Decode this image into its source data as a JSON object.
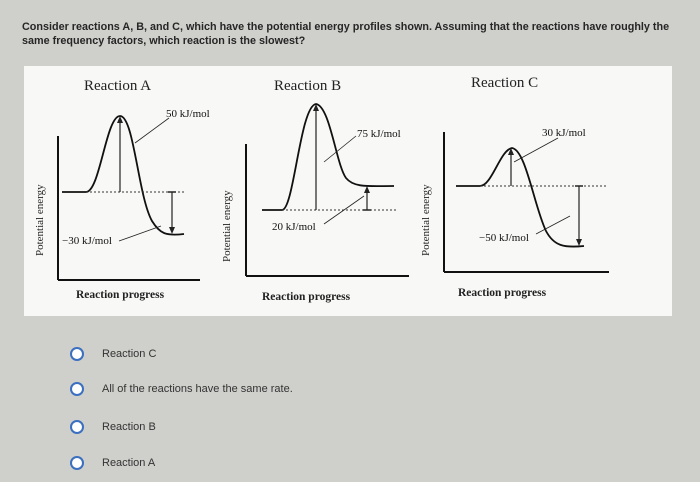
{
  "question": {
    "text": "Consider reactions A, B, and C, which have the potential energy profiles shown. Assuming that the reactions have roughly the same frequency factors, which reaction is the slowest?"
  },
  "figure": {
    "panels": [
      {
        "id": "a",
        "title": "Reaction A",
        "barrier_label": "50 kJ/mol",
        "dh_label": "−30 kJ/mol",
        "y_axis": "Potential energy",
        "x_axis": "Reaction progress"
      },
      {
        "id": "b",
        "title": "Reaction B",
        "barrier_label": "75 kJ/mol",
        "dh_label": "20 kJ/mol",
        "y_axis": "Potential energy",
        "x_axis": "Reaction progress"
      },
      {
        "id": "c",
        "title": "Reaction C",
        "barrier_label": "30 kJ/mol",
        "dh_label": "−50 kJ/mol",
        "y_axis": "Potential energy",
        "x_axis": "Reaction progress"
      }
    ]
  },
  "options": [
    {
      "label": "Reaction C",
      "selected": false
    },
    {
      "label": "All of the reactions have the same rate.",
      "selected": false
    },
    {
      "label": "Reaction B",
      "selected": false
    },
    {
      "label": "Reaction A",
      "selected": false
    }
  ],
  "colors": {
    "radio_border": "#3b6fbf",
    "background": "#cfcfcb",
    "figure_bg": "#f8f8f6"
  }
}
